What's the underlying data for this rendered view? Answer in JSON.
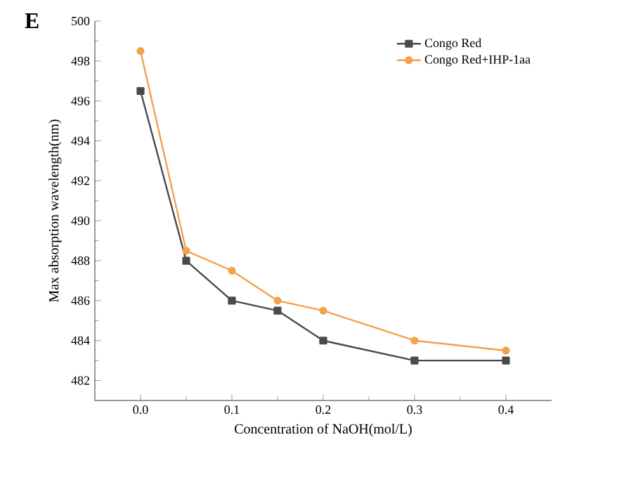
{
  "chart_data": {
    "type": "line",
    "xlabel": "Concentration of NaOH(mol/L)",
    "ylabel": "Max absorption wavelength(nm)",
    "annotations": [
      "E"
    ],
    "x": [
      0,
      0.05,
      0.1,
      0.15,
      0.2,
      0.3,
      0.4
    ],
    "series": [
      {
        "name": "Congo Red",
        "color": "#4a4a4a",
        "marker": "square",
        "values": [
          496.5,
          488,
          486,
          485.5,
          484,
          483,
          483
        ]
      },
      {
        "name": "Congo Red+IHP-1aa",
        "color": "#f5a04a",
        "marker": "circle",
        "values": [
          498.5,
          488.5,
          487.5,
          486,
          485.5,
          484,
          483.5
        ]
      }
    ],
    "xlim": [
      -0.05,
      0.45
    ],
    "xticks": [
      {
        "value": 0,
        "label": "0.0"
      },
      0.1,
      0.2,
      0.3,
      0.4
    ],
    "ylim": [
      481,
      500
    ],
    "yticks": [
      482,
      484,
      486,
      488,
      490,
      492,
      494,
      496,
      498,
      500
    ],
    "legend": "top right",
    "grid": false,
    "line_style": "solid"
  }
}
